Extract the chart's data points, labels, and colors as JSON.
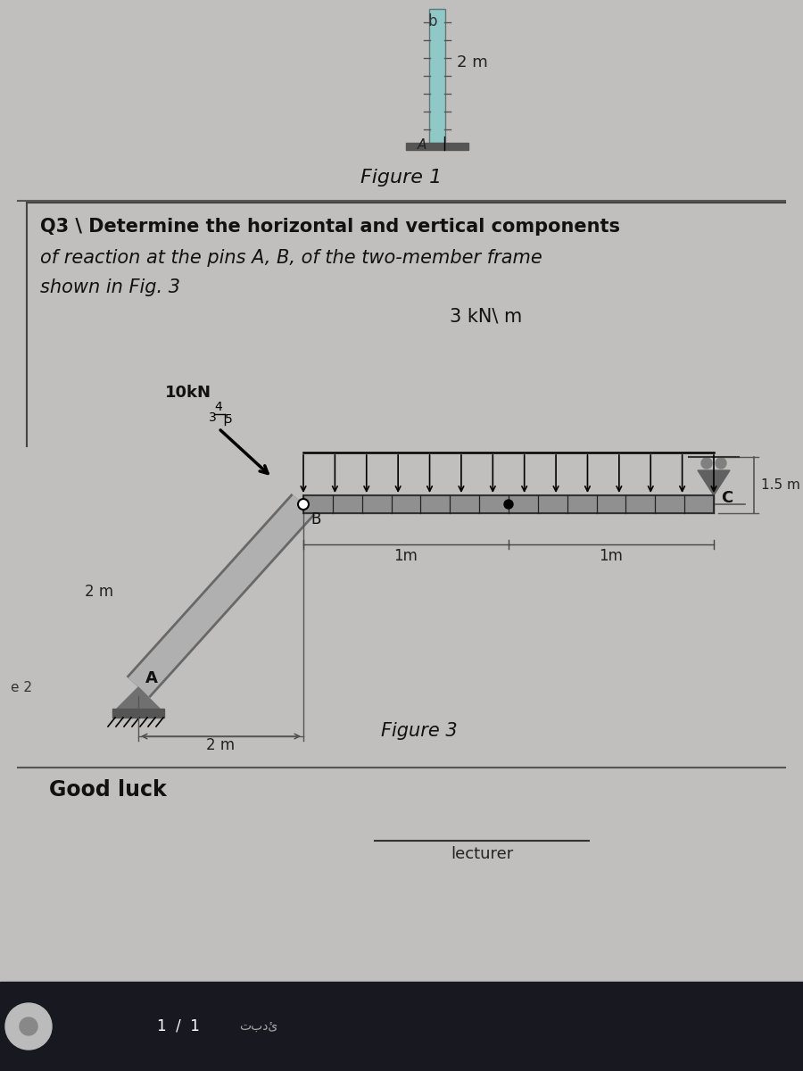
{
  "bg_color": "#c0bfbd",
  "fig1_label": "Figure 1",
  "fig3_label": "Figure 3",
  "q3_line1": "Q3 \\ Determine the horizontal and vertical components",
  "q3_line2": "of reaction at the pins A, B, of the two-member frame",
  "q3_line3": "shown in Fig. 3",
  "load_label": "3 kN\\ m",
  "force_label": "10kN",
  "dim_2m_top": "2 m",
  "dim_2m_left": "2 m",
  "dim_2m_horiz": "2 m",
  "dim_1m_1": "1m",
  "dim_1m_2": "1m",
  "dim_15m": "1.5 m",
  "label_A_fig1": "A",
  "label_A": "A",
  "label_B": "B",
  "label_C": "C",
  "label_b": "b",
  "re2": "e 2",
  "good_luck": "Good luck",
  "lecturer_text": "lecturer",
  "beam_color": "#909090",
  "member_color_light": "#b0b0b0",
  "member_color_dark": "#686868",
  "bar_color": "#90c8c8",
  "toolbar_color": "#1a1a2e",
  "support_color": "#606060",
  "hatch_color": "#404040"
}
